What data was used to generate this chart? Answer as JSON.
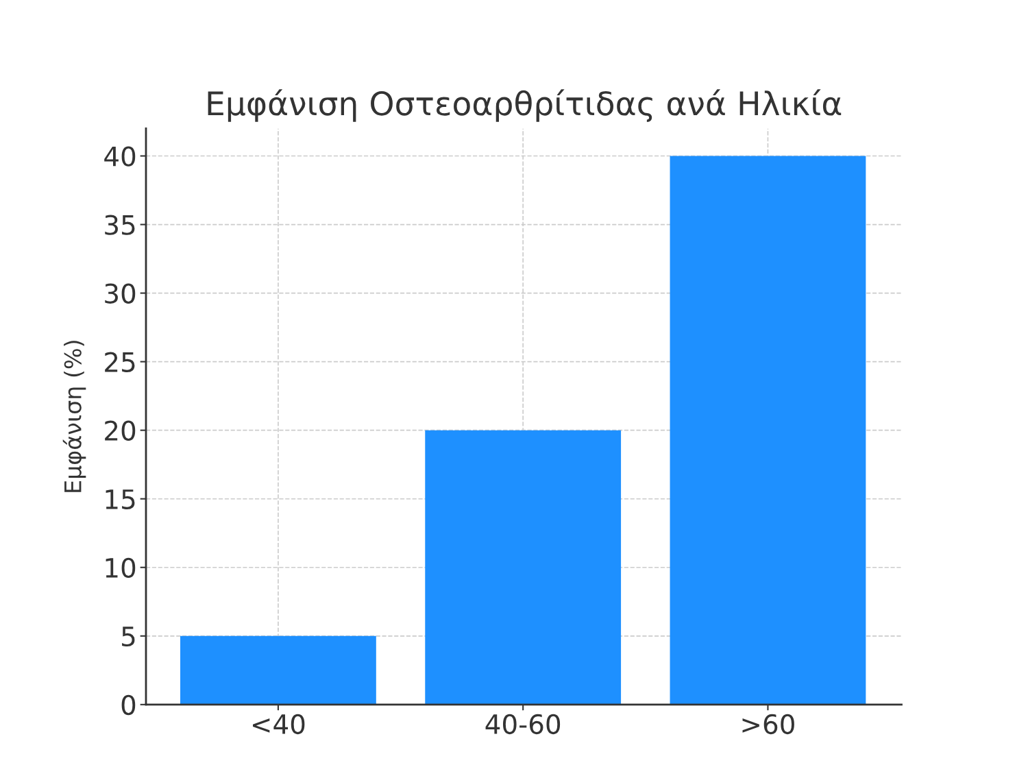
{
  "chart_data": {
    "type": "bar",
    "title": "Εμφάνιση Οστεοαρθρίτιδας ανά Ηλικία",
    "ylabel": "Εμφάνιση (%)",
    "categories": [
      "<40",
      "40-60",
      ">60"
    ],
    "values": [
      5,
      20,
      40
    ],
    "color": "#1e90ff",
    "ylim": [
      0,
      42
    ],
    "yticks": [
      0,
      5,
      10,
      15,
      20,
      25,
      30,
      35,
      40
    ],
    "grid": true
  }
}
